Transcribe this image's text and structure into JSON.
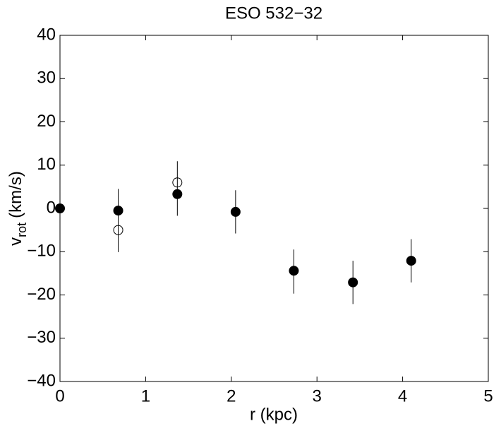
{
  "chart_data": {
    "type": "scatter",
    "title": "ESO 532−32",
    "xlabel": "r (kpc)",
    "ylabel": {
      "main": "v",
      "subscript": "rot",
      "unit": "(km/s)"
    },
    "xlim": [
      0,
      5
    ],
    "xticks": [
      0,
      1,
      2,
      3,
      4,
      5
    ],
    "ylim": [
      -40,
      40
    ],
    "yticks": [
      {
        "value": -40,
        "label": "−40"
      },
      {
        "value": -30,
        "label": "−30"
      },
      {
        "value": -20,
        "label": "−20"
      },
      {
        "value": -10,
        "label": "−10"
      },
      0,
      10,
      20,
      30,
      40
    ],
    "grid": false,
    "series": [
      {
        "marker": "filled",
        "color": "#000000",
        "x": [
          0,
          0.68,
          1.37,
          2.05,
          2.73,
          3.42,
          4.1
        ],
        "values": [
          0,
          -0.5,
          3.3,
          -0.8,
          -14.4,
          -17.1,
          -12.1
        ]
      },
      {
        "marker": "open",
        "color": "#000000",
        "x": [
          0.68,
          1.37
        ],
        "values": [
          -5,
          6
        ]
      }
    ],
    "error_bars": {
      "color": "#000000",
      "x": [
        0.68,
        1.37,
        2.05,
        2.73,
        3.42,
        4.1
      ],
      "values": [
        -2.8,
        4.6,
        -0.8,
        -14.6,
        -17.1,
        -12.1
      ],
      "errors": [
        7.3,
        6.3,
        5,
        5.1,
        5,
        5
      ]
    }
  }
}
